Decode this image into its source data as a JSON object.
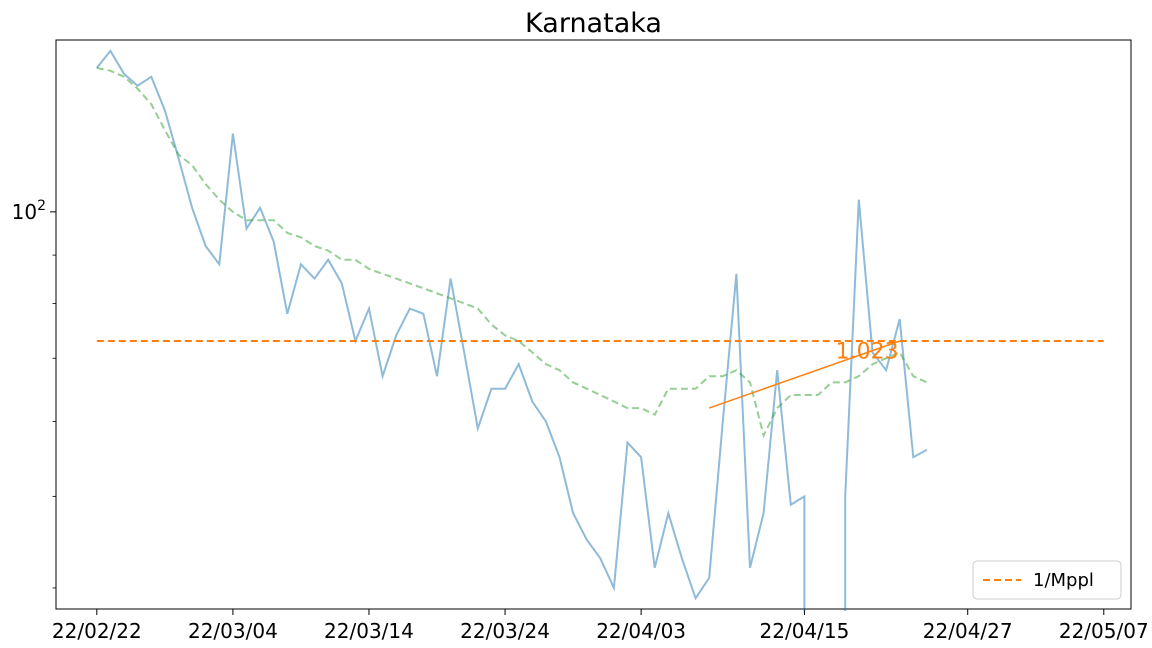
{
  "chart_data": {
    "type": "line",
    "title": "Karnataka",
    "xlabel": "",
    "ylabel": "",
    "y_scale": "log",
    "xlim": [
      "22/02/19",
      "22/05/09"
    ],
    "ylim": [
      38,
      152
    ],
    "x_ticks": [
      "22/02/22",
      "22/03/04",
      "22/03/14",
      "22/03/24",
      "22/04/03",
      "22/04/15",
      "22/04/27",
      "22/05/07"
    ],
    "y_ticks": [
      {
        "value": 100,
        "base": "10",
        "exponent": "2"
      }
    ],
    "grid": false,
    "legend": {
      "placement": "bottom-right",
      "entries": [
        {
          "name": "1/Mppl",
          "color": "#ff7f0e",
          "style": "dashed"
        }
      ]
    },
    "series": [
      {
        "style": "solid",
        "color": "#1f77b4",
        "opacity": 0.5,
        "x": [
          "22/02/22",
          "22/02/23",
          "22/02/24",
          "22/02/25",
          "22/02/26",
          "22/02/27",
          "22/02/28",
          "22/03/01",
          "22/03/02",
          "22/03/03",
          "22/03/04",
          "22/03/05",
          "22/03/06",
          "22/03/07",
          "22/03/08",
          "22/03/09",
          "22/03/10",
          "22/03/11",
          "22/03/12",
          "22/03/13",
          "22/03/14",
          "22/03/15",
          "22/03/16",
          "22/03/17",
          "22/03/18",
          "22/03/19",
          "22/03/20",
          "22/03/21",
          "22/03/22",
          "22/03/23",
          "22/03/24",
          "22/03/25",
          "22/03/26",
          "22/03/27",
          "22/03/28",
          "22/03/29",
          "22/03/30",
          "22/03/31",
          "22/04/01",
          "22/04/02",
          "22/04/03",
          "22/04/04",
          "22/04/05",
          "22/04/06",
          "22/04/07",
          "22/04/08",
          "22/04/09",
          "22/04/10",
          "22/04/11",
          "22/04/12",
          "22/04/13",
          "22/04/14",
          "22/04/15",
          "22/04/16",
          "22/04/17",
          "22/04/18",
          "22/04/19",
          "22/04/20",
          "22/04/21",
          "22/04/22",
          "22/04/23",
          "22/04/24",
          "22/04/25",
          "22/04/26"
        ],
        "values": [
          142,
          148,
          140,
          136,
          139,
          128,
          114,
          101,
          92,
          88,
          121,
          96,
          101,
          93,
          78,
          88,
          85,
          89,
          84,
          73,
          79,
          67,
          74,
          79,
          78,
          67,
          85,
          71,
          59,
          65,
          65,
          69,
          63,
          60,
          55,
          48,
          45,
          43,
          40,
          57,
          55,
          42,
          48,
          43,
          39,
          41,
          60,
          86,
          42,
          48,
          68,
          49,
          50,
          null,
          null,
          50,
          103,
          71,
          68,
          77,
          55,
          56,
          null,
          null
        ],
        "gaps": [
          {
            "from": "22/04/16",
            "to_value_at_edge": "down"
          },
          {
            "from": "22/04/18",
            "to_value_at_edge": "up"
          }
        ]
      },
      {
        "style": "dashed",
        "color": "#2ca02c",
        "opacity": 0.5,
        "x": [
          "22/02/22",
          "22/02/23",
          "22/02/24",
          "22/02/25",
          "22/02/26",
          "22/02/27",
          "22/02/28",
          "22/03/01",
          "22/03/02",
          "22/03/03",
          "22/03/04",
          "22/03/05",
          "22/03/06",
          "22/03/07",
          "22/03/08",
          "22/03/09",
          "22/03/10",
          "22/03/11",
          "22/03/12",
          "22/03/13",
          "22/03/14",
          "22/03/15",
          "22/03/16",
          "22/03/17",
          "22/03/18",
          "22/03/19",
          "22/03/20",
          "22/03/21",
          "22/03/22",
          "22/03/23",
          "22/03/24",
          "22/03/25",
          "22/03/26",
          "22/03/27",
          "22/03/28",
          "22/03/29",
          "22/03/30",
          "22/03/31",
          "22/04/01",
          "22/04/02",
          "22/04/03",
          "22/04/04",
          "22/04/05",
          "22/04/06",
          "22/04/07",
          "22/04/08",
          "22/04/09",
          "22/04/10",
          "22/04/11",
          "22/04/12",
          "22/04/13",
          "22/04/14",
          "22/04/15",
          "22/04/16",
          "22/04/17",
          "22/04/18",
          "22/04/19",
          "22/04/20",
          "22/04/21",
          "22/04/22",
          "22/04/23",
          "22/04/24",
          "22/04/25",
          "22/04/26"
        ],
        "values": [
          142,
          141,
          139,
          135,
          130,
          122,
          115,
          112,
          107,
          103,
          100,
          98,
          98,
          98,
          95,
          94,
          92,
          91,
          89,
          89,
          87,
          86,
          85,
          84,
          83,
          82,
          81,
          80,
          79,
          76,
          74,
          73,
          71,
          69,
          68,
          66,
          65,
          64,
          63,
          62,
          62,
          61,
          65,
          65,
          65,
          67,
          67,
          68,
          66,
          58,
          62,
          64,
          64,
          64,
          66,
          66,
          67,
          69,
          70,
          71,
          67,
          66,
          null,
          null
        ]
      }
    ],
    "reference_line": {
      "name": "1/Mppl",
      "value": 73,
      "x_from": "22/02/22",
      "x_to": "22/05/07",
      "color": "#ff7f0e",
      "style": "dashed"
    },
    "trend_line": {
      "x": [
        "22/04/08",
        "22/04/22"
      ],
      "y": [
        62,
        73
      ],
      "color": "#ff7f0e"
    },
    "annotations": [
      {
        "text": "1.023",
        "x": "22/04/17",
        "y": 71,
        "color": "#ff7f0e"
      }
    ]
  }
}
